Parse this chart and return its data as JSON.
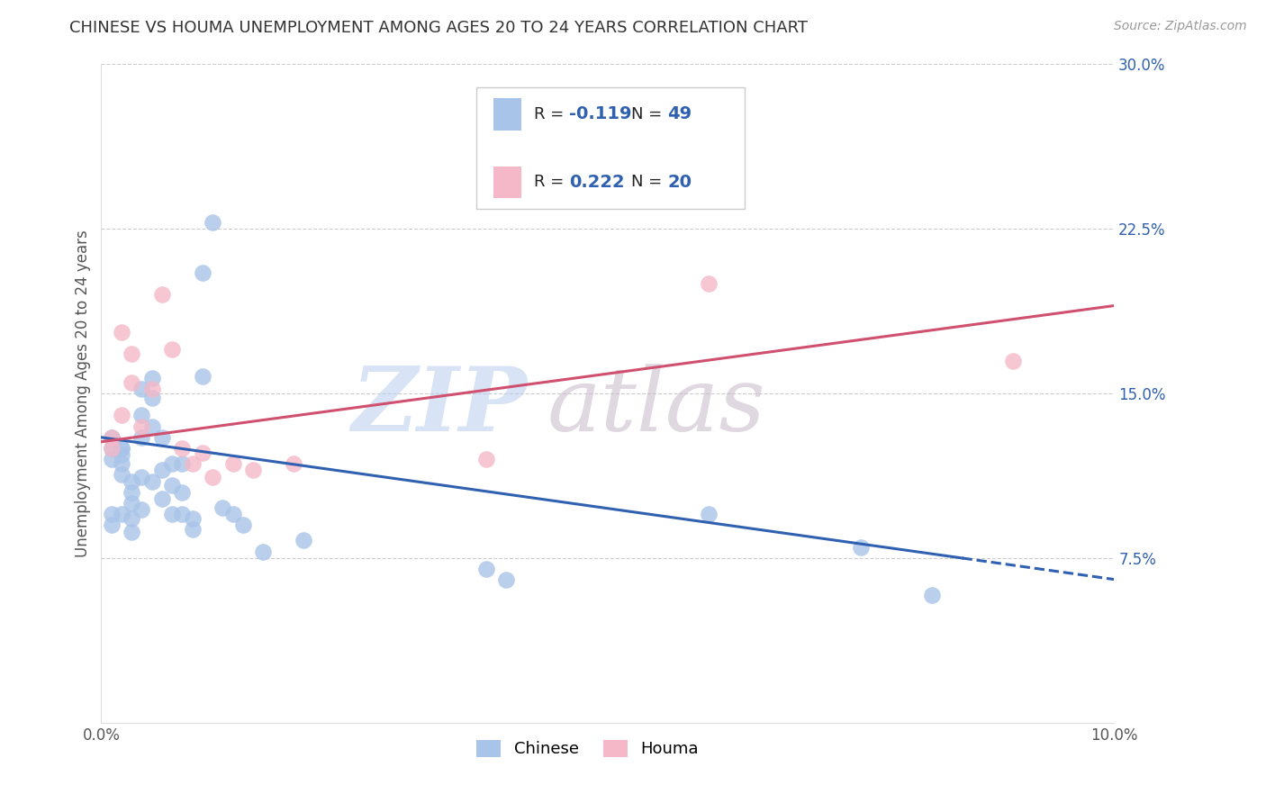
{
  "title": "CHINESE VS HOUMA UNEMPLOYMENT AMONG AGES 20 TO 24 YEARS CORRELATION CHART",
  "source": "Source: ZipAtlas.com",
  "ylabel": "Unemployment Among Ages 20 to 24 years",
  "xlim": [
    0.0,
    0.1
  ],
  "ylim": [
    0.0,
    0.3
  ],
  "xticks": [
    0.0,
    0.02,
    0.04,
    0.06,
    0.08,
    0.1
  ],
  "yticks": [
    0.0,
    0.075,
    0.15,
    0.225,
    0.3
  ],
  "blue_color": "#a8c4e8",
  "pink_color": "#f4b8c8",
  "blue_line_color": "#3060b0",
  "pink_line_color": "#d05070",
  "accent_color": "#3060b0",
  "chinese_N": 49,
  "houma_N": 20,
  "chinese_R": "-0.119",
  "houma_R": "0.222",
  "blue_intercept": 0.13,
  "blue_slope": -0.6,
  "pink_intercept": 0.128,
  "pink_slope": 0.7,
  "chinese_x": [
    0.001,
    0.001,
    0.001,
    0.001,
    0.001,
    0.002,
    0.002,
    0.002,
    0.002,
    0.002,
    0.002,
    0.003,
    0.003,
    0.003,
    0.003,
    0.003,
    0.004,
    0.004,
    0.004,
    0.004,
    0.004,
    0.005,
    0.005,
    0.005,
    0.005,
    0.006,
    0.006,
    0.006,
    0.007,
    0.007,
    0.007,
    0.008,
    0.008,
    0.008,
    0.009,
    0.009,
    0.01,
    0.01,
    0.011,
    0.012,
    0.013,
    0.014,
    0.016,
    0.02,
    0.038,
    0.04,
    0.06,
    0.075,
    0.082
  ],
  "chinese_y": [
    0.13,
    0.125,
    0.12,
    0.095,
    0.09,
    0.125,
    0.125,
    0.122,
    0.118,
    0.113,
    0.095,
    0.11,
    0.105,
    0.1,
    0.093,
    0.087,
    0.152,
    0.14,
    0.13,
    0.112,
    0.097,
    0.157,
    0.148,
    0.135,
    0.11,
    0.13,
    0.115,
    0.102,
    0.118,
    0.108,
    0.095,
    0.118,
    0.105,
    0.095,
    0.093,
    0.088,
    0.205,
    0.158,
    0.228,
    0.098,
    0.095,
    0.09,
    0.078,
    0.083,
    0.07,
    0.065,
    0.095,
    0.08,
    0.058
  ],
  "houma_x": [
    0.001,
    0.001,
    0.002,
    0.002,
    0.003,
    0.003,
    0.004,
    0.005,
    0.006,
    0.007,
    0.008,
    0.009,
    0.01,
    0.011,
    0.013,
    0.015,
    0.019,
    0.038,
    0.06,
    0.09
  ],
  "houma_y": [
    0.13,
    0.125,
    0.14,
    0.178,
    0.168,
    0.155,
    0.135,
    0.152,
    0.195,
    0.17,
    0.125,
    0.118,
    0.123,
    0.112,
    0.118,
    0.115,
    0.118,
    0.12,
    0.2,
    0.165
  ]
}
